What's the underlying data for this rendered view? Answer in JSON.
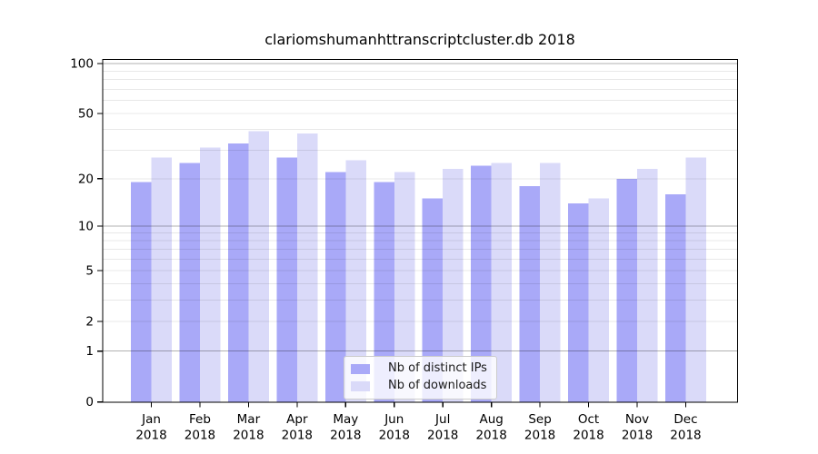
{
  "title": "clariomshumanhttranscriptcluster.db 2018",
  "chart_data": {
    "type": "bar",
    "title": "clariomshumanhttranscriptcluster.db 2018",
    "x_categories": [
      "Jan",
      "Feb",
      "Mar",
      "Apr",
      "May",
      "Jun",
      "Jul",
      "Aug",
      "Sep",
      "Oct",
      "Nov",
      "Dec"
    ],
    "x_year": "2018",
    "series": [
      {
        "name": "Nb of distinct IPs",
        "color": "#a9a9f8",
        "values": [
          19,
          25,
          33,
          27,
          22,
          19,
          15,
          24,
          18,
          14,
          20,
          16
        ]
      },
      {
        "name": "Nb of downloads",
        "color": "#dadaf9",
        "values": [
          27,
          31,
          39,
          38,
          26,
          22,
          23,
          25,
          25,
          15,
          23,
          27
        ]
      }
    ],
    "y_scale": "log1p",
    "ylim": [
      0,
      100
    ],
    "y_ticks": [
      0,
      1,
      2,
      5,
      10,
      20,
      50,
      100
    ],
    "gridlines_minor": [
      2,
      3,
      4,
      5,
      6,
      7,
      8,
      9,
      20,
      30,
      40,
      50,
      60,
      70,
      80,
      90
    ],
    "gridlines_major": [
      1,
      10,
      100
    ],
    "grid": true,
    "legend_position": "bottom-center",
    "xlabel": "",
    "ylabel": ""
  },
  "colors": {
    "bar_ips": "#a9a9f8",
    "bar_downloads": "#dadaf9",
    "background": "#ffffff",
    "grid_minor": "rgba(0,0,0,0.09)",
    "grid_major": "rgba(0,0,0,0.30)",
    "spine": "#000000",
    "text": "#000000"
  }
}
